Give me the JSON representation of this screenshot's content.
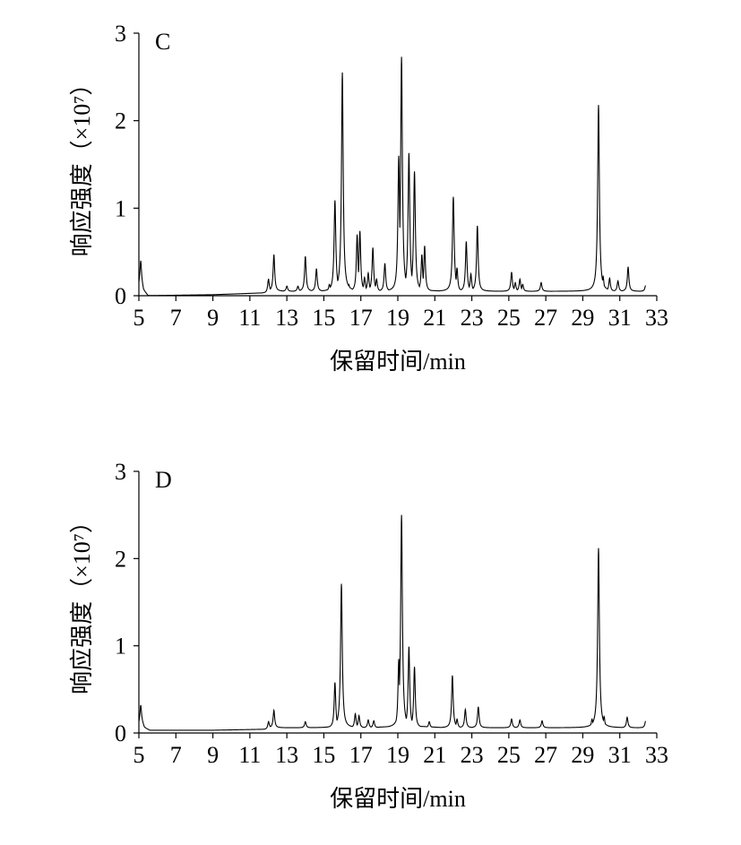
{
  "chart_data": [
    {
      "type": "line",
      "panel_label": "C",
      "xlabel": "保留时间/min",
      "ylabel": "响应强度（×10⁷）",
      "xlim": [
        5,
        33
      ],
      "ylim": [
        0,
        3
      ],
      "xticks": [
        5,
        7,
        9,
        11,
        13,
        15,
        17,
        19,
        21,
        23,
        25,
        27,
        29,
        31,
        33
      ],
      "yticks": [
        0,
        1,
        2,
        3
      ],
      "grid": false,
      "baseline": [
        [
          5.0,
          0.12
        ],
        [
          5.1,
          0.2
        ],
        [
          5.25,
          0.06
        ],
        [
          5.5,
          0.0
        ],
        [
          9.0,
          0.01
        ],
        [
          11.8,
          0.03
        ]
      ],
      "peaks": [
        {
          "x": 5.1,
          "y": 0.2
        },
        {
          "x": 12.0,
          "y": 0.15
        },
        {
          "x": 12.3,
          "y": 0.42
        },
        {
          "x": 13.0,
          "y": 0.06
        },
        {
          "x": 13.6,
          "y": 0.06
        },
        {
          "x": 14.0,
          "y": 0.4
        },
        {
          "x": 14.6,
          "y": 0.26
        },
        {
          "x": 15.3,
          "y": 0.08
        },
        {
          "x": 15.6,
          "y": 1.04
        },
        {
          "x": 16.0,
          "y": 2.5
        },
        {
          "x": 16.35,
          "y": 0.08
        },
        {
          "x": 16.8,
          "y": 0.65
        },
        {
          "x": 16.95,
          "y": 0.69
        },
        {
          "x": 17.2,
          "y": 0.16
        },
        {
          "x": 17.4,
          "y": 0.21
        },
        {
          "x": 17.65,
          "y": 0.5
        },
        {
          "x": 17.85,
          "y": 0.14
        },
        {
          "x": 18.3,
          "y": 0.32
        },
        {
          "x": 19.05,
          "y": 1.55
        },
        {
          "x": 19.2,
          "y": 2.68
        },
        {
          "x": 19.6,
          "y": 1.58
        },
        {
          "x": 19.9,
          "y": 1.37
        },
        {
          "x": 20.3,
          "y": 0.42
        },
        {
          "x": 20.45,
          "y": 0.52
        },
        {
          "x": 22.0,
          "y": 1.08
        },
        {
          "x": 22.2,
          "y": 0.27
        },
        {
          "x": 22.7,
          "y": 0.57
        },
        {
          "x": 22.95,
          "y": 0.2
        },
        {
          "x": 23.3,
          "y": 0.75
        },
        {
          "x": 25.15,
          "y": 0.22
        },
        {
          "x": 25.35,
          "y": 0.1
        },
        {
          "x": 25.6,
          "y": 0.14
        },
        {
          "x": 25.75,
          "y": 0.08
        },
        {
          "x": 26.75,
          "y": 0.1
        },
        {
          "x": 29.85,
          "y": 2.13
        },
        {
          "x": 30.1,
          "y": 0.17
        },
        {
          "x": 30.45,
          "y": 0.15
        },
        {
          "x": 30.9,
          "y": 0.12
        },
        {
          "x": 31.45,
          "y": 0.28
        },
        {
          "x": 32.4,
          "y": 0.07
        }
      ]
    },
    {
      "type": "line",
      "panel_label": "D",
      "xlabel": "保留时间/min",
      "ylabel": "响应强度（×10⁷）",
      "xlim": [
        5,
        33
      ],
      "ylim": [
        0,
        3
      ],
      "xticks": [
        5,
        7,
        9,
        11,
        13,
        15,
        17,
        19,
        21,
        23,
        25,
        27,
        29,
        31,
        33
      ],
      "yticks": [
        0,
        1,
        2,
        3
      ],
      "grid": false,
      "baseline": [
        [
          5.0,
          0.1
        ],
        [
          5.1,
          0.16
        ],
        [
          5.3,
          0.06
        ],
        [
          5.6,
          0.03
        ],
        [
          9.0,
          0.03
        ],
        [
          11.8,
          0.04
        ]
      ],
      "peaks": [
        {
          "x": 5.1,
          "y": 0.16
        },
        {
          "x": 12.0,
          "y": 0.08
        },
        {
          "x": 12.3,
          "y": 0.2
        },
        {
          "x": 14.0,
          "y": 0.07
        },
        {
          "x": 15.6,
          "y": 0.52
        },
        {
          "x": 15.95,
          "y": 1.65
        },
        {
          "x": 16.7,
          "y": 0.16
        },
        {
          "x": 16.9,
          "y": 0.14
        },
        {
          "x": 17.4,
          "y": 0.09
        },
        {
          "x": 17.7,
          "y": 0.08
        },
        {
          "x": 19.05,
          "y": 0.79
        },
        {
          "x": 19.2,
          "y": 2.44
        },
        {
          "x": 19.6,
          "y": 0.93
        },
        {
          "x": 19.9,
          "y": 0.7
        },
        {
          "x": 20.7,
          "y": 0.07
        },
        {
          "x": 21.95,
          "y": 0.6
        },
        {
          "x": 22.2,
          "y": 0.1
        },
        {
          "x": 22.65,
          "y": 0.21
        },
        {
          "x": 23.35,
          "y": 0.24
        },
        {
          "x": 25.15,
          "y": 0.1
        },
        {
          "x": 25.6,
          "y": 0.09
        },
        {
          "x": 26.8,
          "y": 0.08
        },
        {
          "x": 29.5,
          "y": 0.1
        },
        {
          "x": 29.85,
          "y": 2.06
        },
        {
          "x": 30.15,
          "y": 0.13
        },
        {
          "x": 31.4,
          "y": 0.12
        },
        {
          "x": 32.4,
          "y": 0.08
        }
      ]
    }
  ]
}
